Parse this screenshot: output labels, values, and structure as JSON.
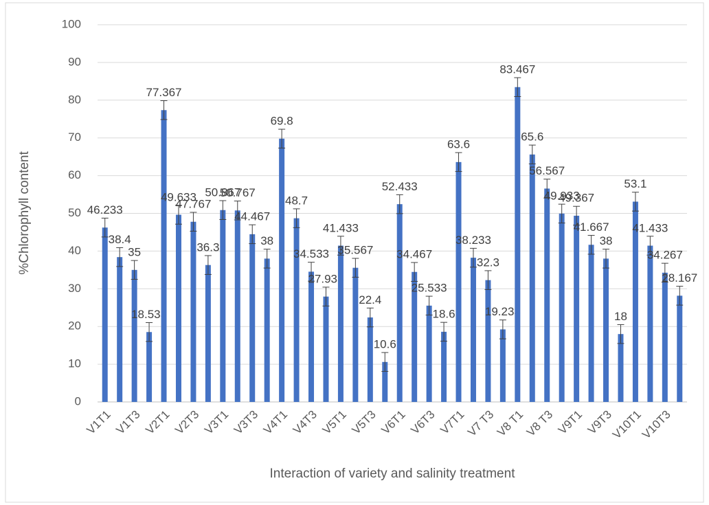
{
  "chart_data": {
    "type": "bar",
    "x_label": "Interaction of variety and salinity treatment",
    "y_label": "%Chlorophyll content",
    "categories": [
      "V1T1",
      null,
      "V1T3",
      null,
      "V2T1",
      null,
      "V2T3",
      null,
      "V3T1",
      null,
      "V3T3",
      null,
      "V4T1",
      null,
      "V4T3",
      null,
      "V5T1",
      null,
      "V5T3",
      null,
      "V6T1",
      null,
      "V6T3",
      null,
      "V7T1",
      null,
      "V7 T3",
      null,
      "V8 T1",
      null,
      "V8 T3",
      null,
      "V9T1",
      null,
      "V9T3",
      null,
      "V10T1",
      null,
      "V10T3",
      null
    ],
    "values": [
      46.233,
      38.4,
      35,
      18.533,
      77.367,
      49.633,
      47.767,
      36.3,
      50.867,
      50.767,
      44.467,
      38,
      69.8,
      48.7,
      34.533,
      27.933,
      41.433,
      35.567,
      22.4,
      10.6,
      52.433,
      34.467,
      25.533,
      18.6,
      63.6,
      38.233,
      32.3,
      19.233,
      83.467,
      65.6,
      56.567,
      49.933,
      49.367,
      41.667,
      38,
      18,
      53.1,
      41.433,
      34.267,
      28.167
    ],
    "errors": [
      2.5,
      2.5,
      2.5,
      2.5,
      2.5,
      2.5,
      2.5,
      2.5,
      2.5,
      2.5,
      2.5,
      2.5,
      2.5,
      2.5,
      2.5,
      2.5,
      2.5,
      2.5,
      2.5,
      2.5,
      2.5,
      2.5,
      2.5,
      2.5,
      2.5,
      2.5,
      2.5,
      2.5,
      2.5,
      2.5,
      2.5,
      2.5,
      2.5,
      2.5,
      2.5,
      2.5,
      2.5,
      2.5,
      2.5,
      2.5
    ],
    "color": "#4472c4",
    "ylim": [
      0,
      100
    ],
    "yticks": [
      0,
      10,
      20,
      30,
      40,
      50,
      60,
      70,
      80,
      90,
      100
    ],
    "grid": true
  }
}
